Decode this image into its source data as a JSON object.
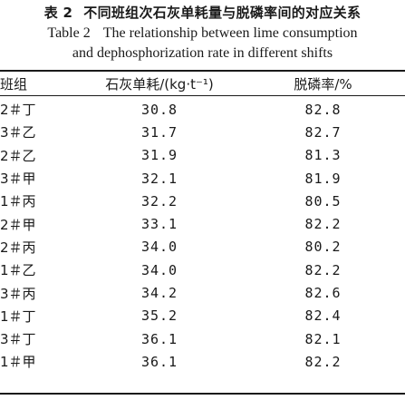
{
  "caption": {
    "label_cn": "表 2",
    "title_cn": "不同班组次石灰单耗量与脱磷率间的对应关系",
    "label_en": "Table 2",
    "title_en_line1": "The relationship between lime consumption",
    "title_en_line2": "and dephosphorization rate in different shifts"
  },
  "table": {
    "headers": [
      "班组",
      "石灰单耗/(kg·t⁻¹)",
      "脱磷率/%"
    ],
    "rows": [
      [
        "2＃丁",
        "30.8",
        "82.8"
      ],
      [
        "3＃乙",
        "31.7",
        "82.7"
      ],
      [
        "2＃乙",
        "31.9",
        "81.3"
      ],
      [
        "3＃甲",
        "32.1",
        "81.9"
      ],
      [
        "1＃丙",
        "32.2",
        "80.5"
      ],
      [
        "2＃甲",
        "33.1",
        "82.2"
      ],
      [
        "2＃丙",
        "34.0",
        "80.2"
      ],
      [
        "1＃乙",
        "34.0",
        "82.2"
      ],
      [
        "3＃丙",
        "34.2",
        "82.6"
      ],
      [
        "1＃丁",
        "35.2",
        "82.4"
      ],
      [
        "3＃丁",
        "36.1",
        "82.1"
      ],
      [
        "1＃甲",
        "36.1",
        "82.2"
      ]
    ]
  }
}
